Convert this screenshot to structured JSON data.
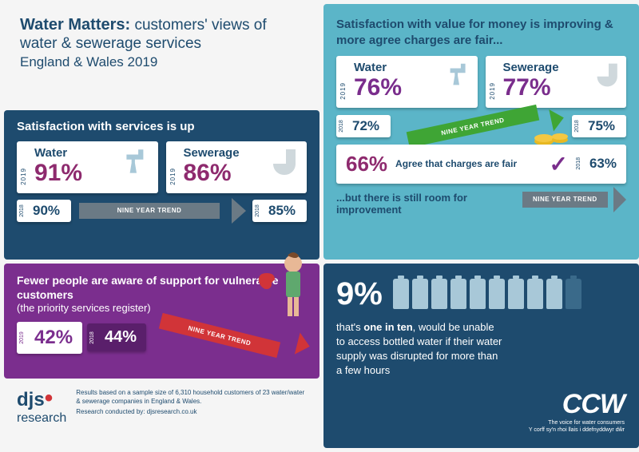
{
  "colors": {
    "navy": "#1e4b6e",
    "teal": "#5bb5c8",
    "purple": "#7b2e8e",
    "magenta": "#8e2a6e",
    "pct_purple": "#7a2d8c",
    "grey_arrow": "#6b7a85",
    "green_arrow": "#3fa535",
    "red_arrow": "#d13438",
    "bottle_light": "#a8c8d8",
    "bottle_dark": "#3a6a8a",
    "white": "#ffffff"
  },
  "header": {
    "title_bold": "Water Matters:",
    "title_rest": " customers' views of water & sewerage services",
    "location": "England & Wales 2019"
  },
  "satisfaction": {
    "title": "Satisfaction with services is up",
    "water": {
      "label": "Water",
      "year": "2019",
      "pct": "91%",
      "prev_year": "2018",
      "prev_pct": "90%"
    },
    "sewerage": {
      "label": "Sewerage",
      "year": "2019",
      "pct": "86%",
      "prev_year": "2018",
      "prev_pct": "85%"
    },
    "trend": "NINE YEAR TREND"
  },
  "vfm": {
    "title": "Satisfaction with value for money is improving & more agree charges are fair...",
    "water": {
      "label": "Water",
      "year": "2019",
      "pct": "76%",
      "prev_year": "2018",
      "prev_pct": "72%"
    },
    "sewerage": {
      "label": "Sewerage",
      "year": "2019",
      "pct": "77%",
      "prev_year": "2018",
      "prev_pct": "75%"
    },
    "trend": "NINE YEAR TREND",
    "fair": {
      "pct": "66%",
      "text": "Agree that charges are fair",
      "prev_year": "2018",
      "prev_pct": "63%"
    },
    "room": "...but there is still room for improvement"
  },
  "aware": {
    "title": "Fewer people are aware of support for vulnerable customers",
    "sub": "(the priority services register)",
    "cur": {
      "year": "2019",
      "pct": "42%"
    },
    "prev": {
      "year": "2018",
      "pct": "44%"
    },
    "trend": "NINE YEAR TREND"
  },
  "bottles": {
    "pct": "9%",
    "filled": 9,
    "total": 10,
    "text_pre": "that's ",
    "text_bold": "one in ten",
    "text_post": ", would be unable to access bottled water if their water supply was disrupted for more than a few hours"
  },
  "footer": {
    "logo1": "djs",
    "logo1_sub": "research",
    "note": "Results based on a sample size of 6,310 household customers of 23 water/water & sewerage companies in England & Wales.",
    "note2": "Research conducted by: djsresearch.co.uk"
  },
  "ccw": {
    "big": "CCW",
    "line1": "The voice for water consumers",
    "line2": "Y corff sy'n rhoi llais i ddefnyddwyr dŵr"
  }
}
